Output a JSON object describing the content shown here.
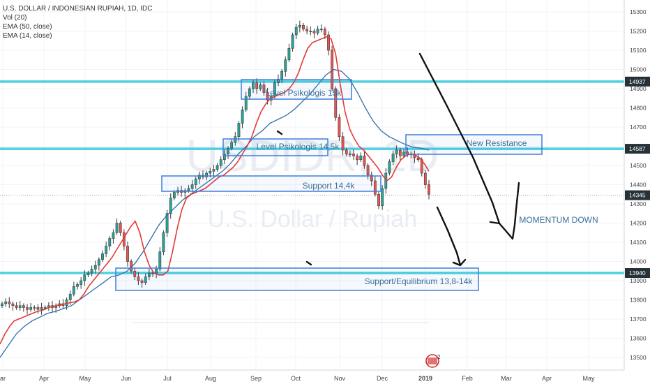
{
  "legend": {
    "title": "U.S. DOLLAR / INDONESIAN RUPIAH, 1D, IDC",
    "vol": "Vol (20)",
    "ema50": "EMA (50, close)",
    "ema14": "EMA (14, close)"
  },
  "watermark": {
    "symbol": "USDIDR, 1D",
    "name": "U.S. Dollar / Rupiah"
  },
  "colors": {
    "bull": "#26a69a",
    "bear": "#ef5350",
    "candle": "#3a3a3a",
    "ema14": "#e53935",
    "ema50": "#2e6fa8",
    "level": "#4dd0e1",
    "box": "#3f7fd6",
    "price_badge_bg": "#263238",
    "grid": "#f0f3fa"
  },
  "chart_data": {
    "type": "candlestick",
    "y_axis": {
      "range": [
        13450,
        15330
      ],
      "ticks": [
        13500,
        13600,
        13700,
        13800,
        13900,
        14000,
        14100,
        14200,
        14300,
        14400,
        14500,
        14600,
        14700,
        14800,
        14900,
        15000,
        15100,
        15200,
        15300
      ]
    },
    "x_axis": {
      "labels": [
        "ar",
        "Apr",
        "May",
        "Jun",
        "Jul",
        "Aug",
        "Sep",
        "Oct",
        "Nov",
        "Dec",
        "2019",
        "Feb",
        "Mar",
        "Apr",
        "May"
      ]
    },
    "price_badges": [
      14937,
      14587,
      14345,
      13940
    ],
    "current_price": 14345,
    "horizontal_levels": [
      14937,
      14587,
      13940
    ],
    "close_series": [
      13780,
      13790,
      13780,
      13770,
      13760,
      13770,
      13760,
      13750,
      13760,
      13760,
      13750,
      13760,
      13760,
      13770,
      13760,
      13770,
      13780,
      13770,
      13800,
      13830,
      13870,
      13880,
      13900,
      13930,
      13940,
      13960,
      13980,
      14010,
      14040,
      14080,
      14120,
      14150,
      14200,
      14150,
      14080,
      14000,
      13950,
      13920,
      13900,
      13890,
      13920,
      13940,
      13940,
      13960,
      14050,
      14150,
      14250,
      14330,
      14360,
      14370,
      14360,
      14370,
      14380,
      14400,
      14430,
      14450,
      14440,
      14460,
      14470,
      14480,
      14500,
      14530,
      14560,
      14590,
      14620,
      14650,
      14720,
      14790,
      14860,
      14900,
      14930,
      14900,
      14920,
      14880,
      14840,
      14860,
      14930,
      14950,
      14990,
      15050,
      15110,
      15180,
      15220,
      15230,
      15210,
      15200,
      15200,
      15190,
      15210,
      15210,
      15180,
      15100,
      14900,
      14750,
      14650,
      14580,
      14560,
      14560,
      14550,
      14530,
      14550,
      14500,
      14450,
      14420,
      14350,
      14290,
      14380,
      14460,
      14520,
      14560,
      14580,
      14550,
      14570,
      14560,
      14560,
      14540,
      14530,
      14460,
      14400,
      14350
    ],
    "ema14": [
      13570,
      13620,
      13660,
      13690,
      13700,
      13710,
      13720,
      13730,
      13740,
      13745,
      13755,
      13765,
      13770,
      13775,
      13780,
      13785,
      13790,
      13800,
      13830,
      13870,
      13900,
      13930,
      13960,
      13990,
      14020,
      14060,
      14100,
      14140,
      14180,
      14210,
      14150,
      14050,
      13980,
      13940,
      13930,
      13930,
      13950,
      14050,
      14170,
      14270,
      14330,
      14350,
      14360,
      14370,
      14380,
      14400,
      14420,
      14440,
      14450,
      14470,
      14490,
      14520,
      14560,
      14600,
      14650,
      14720,
      14780,
      14820,
      14850,
      14860,
      14870,
      14880,
      14900,
      14930,
      14980,
      15050,
      15110,
      15140,
      15150,
      15160,
      15170,
      15160,
      15080,
      14920,
      14780,
      14690,
      14640,
      14600,
      14580,
      14550,
      14520,
      14490,
      14450,
      14420,
      14440,
      14490,
      14530,
      14550,
      14560,
      14555,
      14540,
      14510,
      14470
    ],
    "ema50": [
      13500,
      13560,
      13620,
      13660,
      13690,
      13710,
      13730,
      13740,
      13755,
      13770,
      13800,
      13830,
      13860,
      13890,
      13920,
      13930,
      13950,
      13990,
      14050,
      14120,
      14190,
      14240,
      14280,
      14320,
      14350,
      14380,
      14410,
      14440,
      14470,
      14510,
      14560,
      14600,
      14650,
      14680,
      14720,
      14740,
      14760,
      14790,
      14830,
      14870,
      14920,
      14970,
      15000,
      14990,
      14950,
      14880,
      14800,
      14730,
      14680,
      14650,
      14630,
      14610,
      14595,
      14590,
      14580
    ],
    "boxes": [
      {
        "label": "Level Psikologis 15k"
      },
      {
        "label": "Level Psikologis 14,5k"
      },
      {
        "label": "Support 14,4k"
      },
      {
        "label": "Support/Equilibrium 13,8-14k"
      },
      {
        "label": "New Resistance"
      }
    ],
    "annotations": {
      "momentum": "MOMENTUM DOWN"
    }
  }
}
